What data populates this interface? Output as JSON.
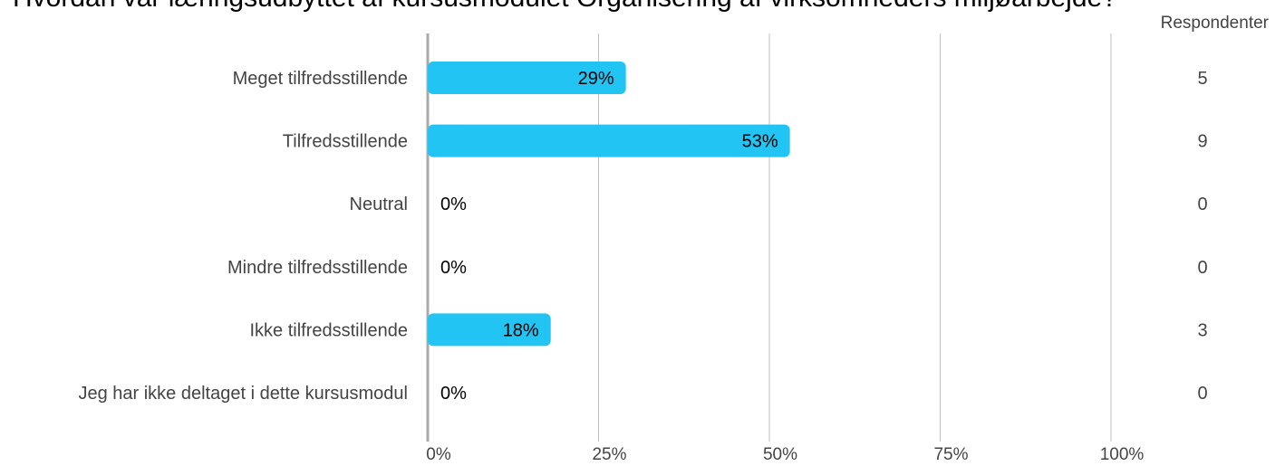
{
  "chart_data": {
    "type": "bar",
    "orientation": "horizontal",
    "title": "Hvordan var læringsudbyttet af kursusmodulet Organisering af virksomheders miljøarbejde?",
    "respondents_header": "Respondenter",
    "categories": [
      "Meget tilfredsstillende",
      "Tilfredsstillende",
      "Neutral",
      "Mindre tilfredsstillende",
      "Ikke tilfredsstillende",
      "Jeg har ikke deltaget i dette kursusmodul"
    ],
    "values": [
      29,
      53,
      0,
      0,
      18,
      0
    ],
    "value_labels": [
      "29%",
      "53%",
      "0%",
      "0%",
      "18%",
      "0%"
    ],
    "respondents": [
      "5",
      "9",
      "0",
      "0",
      "3",
      "0"
    ],
    "xlim": [
      0,
      100
    ],
    "x_ticks": [
      0,
      25,
      50,
      75,
      100
    ],
    "x_tick_labels": [
      "0%",
      "25%",
      "50%",
      "75%",
      "100%"
    ],
    "grid": true,
    "bar_color": "#22c4f3",
    "axis_color": "#aaaaaa",
    "grid_color": "#bfbfbf"
  }
}
